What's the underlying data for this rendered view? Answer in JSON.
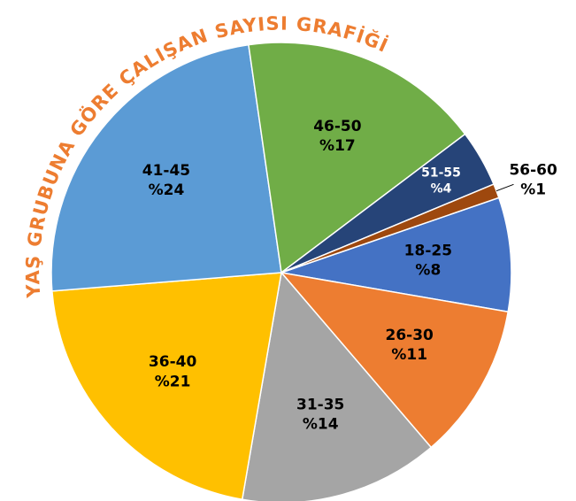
{
  "chart_data": {
    "type": "pie",
    "title": "YAŞ GRUBUNA GÖRE ÇALIŞAN SAYISI GRAFİĞİ",
    "categories": [
      "18-25",
      "26-30",
      "31-35",
      "36-40",
      "41-45",
      "46-50",
      "51-55",
      "56-60"
    ],
    "values": [
      8,
      11,
      14,
      21,
      24,
      17,
      4,
      1
    ],
    "value_labels": [
      "%8",
      "%11",
      "%14",
      "%21",
      "%24",
      "%17",
      "%4",
      "%1"
    ],
    "colors": [
      "#4472c4",
      "#ed7d31",
      "#a5a5a5",
      "#ffc000",
      "#5b9bd5",
      "#70ad47",
      "#264478",
      "#9e480e"
    ]
  }
}
